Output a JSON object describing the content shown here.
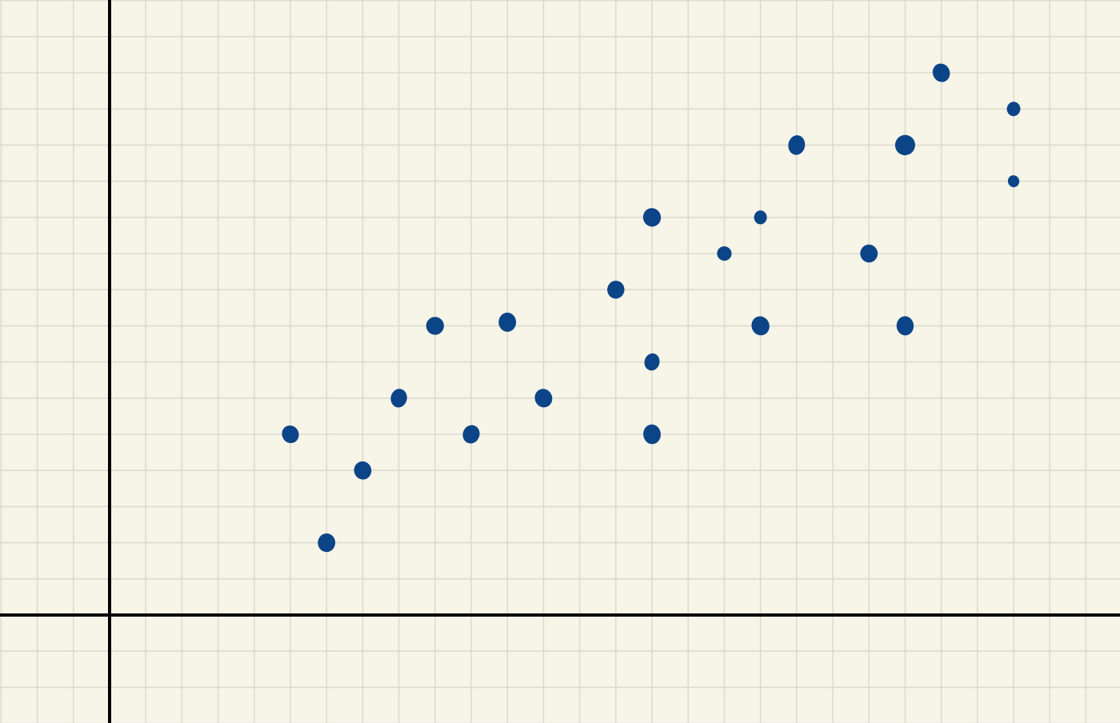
{
  "theme": {
    "paper_color": "#f7f5e8",
    "grid_color": "#dcdbd0",
    "axis_color": "#000000",
    "point_color": "#0c4488"
  },
  "chart_data": {
    "type": "scatter",
    "title": "",
    "xlabel": "",
    "ylabel": "",
    "grid": true,
    "legend": "none",
    "xlim": [
      -3,
      28
    ],
    "ylim": [
      -3,
      17
    ],
    "series": [
      {
        "points": [
          {
            "x": 5,
            "y": 5,
            "size": 1.0
          },
          {
            "x": 6,
            "y": 2,
            "size": 1.0
          },
          {
            "x": 7,
            "y": 4,
            "size": 0.95
          },
          {
            "x": 8,
            "y": 6,
            "size": 0.95
          },
          {
            "x": 9,
            "y": 8,
            "size": 1.0
          },
          {
            "x": 10,
            "y": 5,
            "size": 1.0
          },
          {
            "x": 11,
            "y": 8.1,
            "size": 1.0
          },
          {
            "x": 12,
            "y": 6,
            "size": 0.95
          },
          {
            "x": 14,
            "y": 9,
            "size": 1.0
          },
          {
            "x": 15,
            "y": 11,
            "size": 1.0
          },
          {
            "x": 15,
            "y": 7,
            "size": 0.9
          },
          {
            "x": 15,
            "y": 5,
            "size": 1.0
          },
          {
            "x": 17,
            "y": 10,
            "size": 0.8
          },
          {
            "x": 18,
            "y": 11,
            "size": 0.75
          },
          {
            "x": 18,
            "y": 8,
            "size": 1.0
          },
          {
            "x": 19,
            "y": 13,
            "size": 1.0
          },
          {
            "x": 21,
            "y": 10,
            "size": 1.0
          },
          {
            "x": 22,
            "y": 13,
            "size": 1.1
          },
          {
            "x": 22,
            "y": 8,
            "size": 1.0
          },
          {
            "x": 23,
            "y": 15,
            "size": 0.95
          },
          {
            "x": 25,
            "y": 14,
            "size": 0.8
          },
          {
            "x": 25,
            "y": 12,
            "size": 0.65
          }
        ]
      }
    ]
  }
}
